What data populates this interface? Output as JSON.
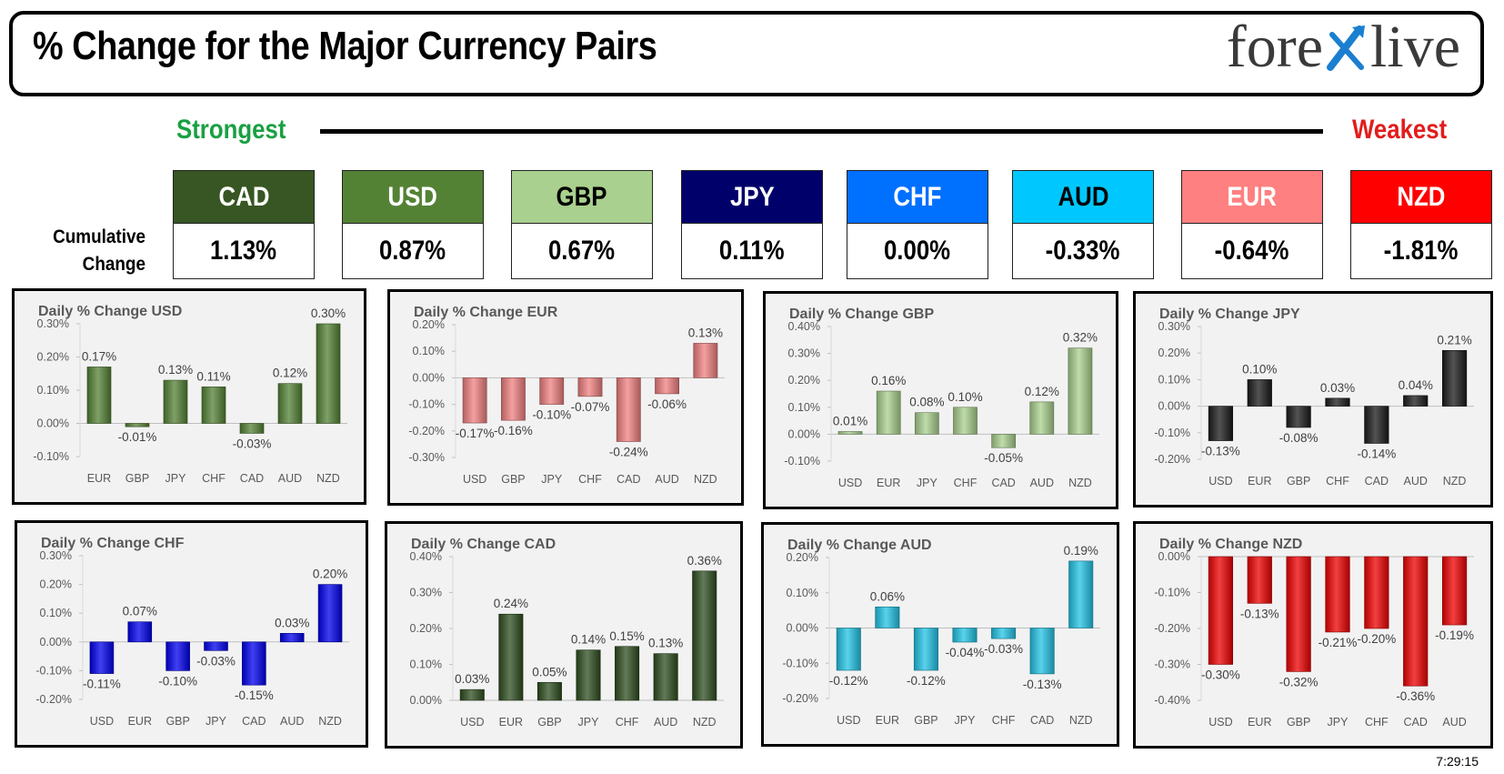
{
  "header": {
    "title": "% Change for the Major Currency Pairs",
    "logo_left": "fore",
    "logo_right": "live"
  },
  "ranking": {
    "strongest_label": "Strongest",
    "weakest_label": "Weakest",
    "cumulative_label_1": "Cumulative",
    "cumulative_label_2": "Change"
  },
  "tiles": [
    {
      "currency": "CAD",
      "value": "1.13%",
      "bg": "#375623",
      "fg": "#ffffff"
    },
    {
      "currency": "USD",
      "value": "0.87%",
      "bg": "#548235",
      "fg": "#ffffff"
    },
    {
      "currency": "GBP",
      "value": "0.67%",
      "bg": "#a9d08e",
      "fg": "#000000"
    },
    {
      "currency": "JPY",
      "value": "0.11%",
      "bg": "#00006b",
      "fg": "#ffffff"
    },
    {
      "currency": "CHF",
      "value": "0.00%",
      "bg": "#0070ff",
      "fg": "#ffffff"
    },
    {
      "currency": "AUD",
      "value": "-0.33%",
      "bg": "#00c8ff",
      "fg": "#000000"
    },
    {
      "currency": "EUR",
      "value": "-0.64%",
      "bg": "#ff8080",
      "fg": "#ffffff"
    },
    {
      "currency": "NZD",
      "value": "-1.81%",
      "bg": "#ff0000",
      "fg": "#ffffff"
    }
  ],
  "timestamp": "7:29:15",
  "chart_data": [
    {
      "type": "bar",
      "title": "Daily % Change USD",
      "categories": [
        "EUR",
        "GBP",
        "JPY",
        "CHF",
        "CAD",
        "AUD",
        "NZD"
      ],
      "values": [
        0.17,
        -0.01,
        0.13,
        0.11,
        -0.03,
        0.12,
        0.3
      ],
      "labels": [
        "0.17%",
        "-0.01%",
        "0.13%",
        "0.11%",
        "-0.03%",
        "0.12%",
        "0.30%"
      ],
      "yticks": [
        "0.30%",
        "0.20%",
        "0.10%",
        "0.00%",
        "-0.10%"
      ],
      "ylim": [
        -0.1,
        0.3
      ],
      "color": "#548235"
    },
    {
      "type": "bar",
      "title": "Daily % Change EUR",
      "categories": [
        "USD",
        "GBP",
        "JPY",
        "CHF",
        "CAD",
        "AUD",
        "NZD"
      ],
      "values": [
        -0.17,
        -0.16,
        -0.1,
        -0.07,
        -0.24,
        -0.06,
        0.13
      ],
      "labels": [
        "-0.17%",
        "-0.16%",
        "-0.10%",
        "-0.07%",
        "-0.24%",
        "-0.06%",
        "0.13%"
      ],
      "yticks": [
        "0.20%",
        "0.10%",
        "0.00%",
        "-0.10%",
        "-0.20%",
        "-0.30%"
      ],
      "ylim": [
        -0.3,
        0.2
      ],
      "color": "#f08080"
    },
    {
      "type": "bar",
      "title": "Daily % Change GBP",
      "categories": [
        "USD",
        "EUR",
        "JPY",
        "CHF",
        "CAD",
        "AUD",
        "NZD"
      ],
      "values": [
        0.01,
        0.16,
        0.08,
        0.1,
        -0.05,
        0.12,
        0.32
      ],
      "labels": [
        "0.01%",
        "0.16%",
        "0.08%",
        "0.10%",
        "-0.05%",
        "0.12%",
        "0.32%"
      ],
      "yticks": [
        "0.40%",
        "0.30%",
        "0.20%",
        "0.10%",
        "0.00%",
        "-0.10%"
      ],
      "ylim": [
        -0.1,
        0.4
      ],
      "color": "#a9d08e"
    },
    {
      "type": "bar",
      "title": "Daily % Change JPY",
      "categories": [
        "USD",
        "EUR",
        "GBP",
        "CHF",
        "CAD",
        "AUD",
        "NZD"
      ],
      "values": [
        -0.13,
        0.1,
        -0.08,
        0.03,
        -0.14,
        0.04,
        0.21
      ],
      "labels": [
        "-0.13%",
        "0.10%",
        "-0.08%",
        "0.03%",
        "-0.14%",
        "0.04%",
        "0.21%"
      ],
      "yticks": [
        "0.30%",
        "0.20%",
        "0.10%",
        "0.00%",
        "-0.10%",
        "-0.20%"
      ],
      "ylim": [
        -0.2,
        0.3
      ],
      "color": "#1a1a1a"
    },
    {
      "type": "bar",
      "title": "Daily % Change CHF",
      "categories": [
        "USD",
        "EUR",
        "GBP",
        "JPY",
        "CAD",
        "AUD",
        "NZD"
      ],
      "values": [
        -0.11,
        0.07,
        -0.1,
        -0.03,
        -0.15,
        0.03,
        0.2
      ],
      "labels": [
        "-0.11%",
        "0.07%",
        "-0.10%",
        "-0.03%",
        "-0.15%",
        "0.03%",
        "0.20%"
      ],
      "yticks": [
        "0.30%",
        "0.20%",
        "0.10%",
        "0.00%",
        "-0.10%",
        "-0.20%"
      ],
      "ylim": [
        -0.2,
        0.3
      ],
      "color": "#0000ee"
    },
    {
      "type": "bar",
      "title": "Daily % Change CAD",
      "categories": [
        "USD",
        "EUR",
        "GBP",
        "JPY",
        "CHF",
        "AUD",
        "NZD"
      ],
      "values": [
        0.03,
        0.24,
        0.05,
        0.14,
        0.15,
        0.13,
        0.36
      ],
      "labels": [
        "0.03%",
        "0.24%",
        "0.05%",
        "0.14%",
        "0.15%",
        "0.13%",
        "0.36%"
      ],
      "yticks": [
        "0.40%",
        "0.30%",
        "0.20%",
        "0.10%",
        "0.00%"
      ],
      "ylim": [
        0.0,
        0.4
      ],
      "color": "#2e4d1f"
    },
    {
      "type": "bar",
      "title": "Daily % Change AUD",
      "categories": [
        "USD",
        "EUR",
        "GBP",
        "JPY",
        "CHF",
        "CAD",
        "NZD"
      ],
      "values": [
        -0.12,
        0.06,
        -0.12,
        -0.04,
        -0.03,
        -0.13,
        0.19
      ],
      "labels": [
        "-0.12%",
        "0.06%",
        "-0.12%",
        "-0.04%",
        "-0.03%",
        "-0.13%",
        "0.19%"
      ],
      "yticks": [
        "0.20%",
        "0.10%",
        "0.00%",
        "-0.10%",
        "-0.20%"
      ],
      "ylim": [
        -0.2,
        0.2
      ],
      "color": "#22c4e6"
    },
    {
      "type": "bar",
      "title": "Daily % Change NZD",
      "categories": [
        "USD",
        "EUR",
        "GBP",
        "JPY",
        "CHF",
        "CAD",
        "AUD"
      ],
      "values": [
        -0.3,
        -0.13,
        -0.32,
        -0.21,
        -0.2,
        -0.36,
        -0.19
      ],
      "labels": [
        "-0.30%",
        "-0.13%",
        "-0.32%",
        "-0.21%",
        "-0.20%",
        "-0.36%",
        "-0.19%"
      ],
      "yticks": [
        "0.00%",
        "-0.10%",
        "-0.20%",
        "-0.30%",
        "-0.40%"
      ],
      "ylim": [
        -0.4,
        0.0
      ],
      "color": "#ee0000"
    }
  ]
}
